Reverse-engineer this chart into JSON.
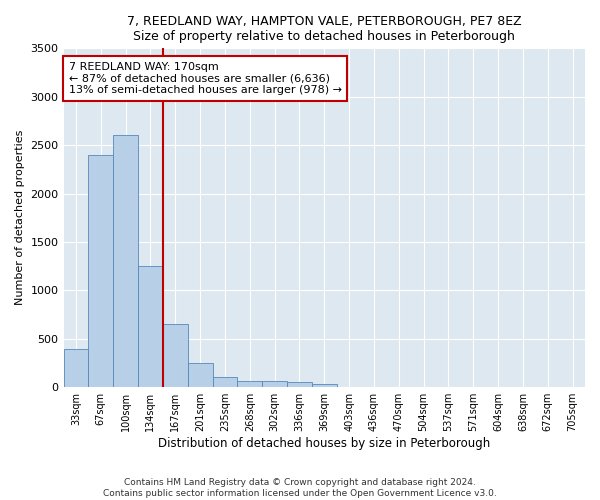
{
  "title1": "7, REEDLAND WAY, HAMPTON VALE, PETERBOROUGH, PE7 8EZ",
  "title2": "Size of property relative to detached houses in Peterborough",
  "xlabel": "Distribution of detached houses by size in Peterborough",
  "ylabel": "Number of detached properties",
  "categories": [
    "33sqm",
    "67sqm",
    "100sqm",
    "134sqm",
    "167sqm",
    "201sqm",
    "235sqm",
    "268sqm",
    "302sqm",
    "336sqm",
    "369sqm",
    "403sqm",
    "436sqm",
    "470sqm",
    "504sqm",
    "537sqm",
    "571sqm",
    "604sqm",
    "638sqm",
    "672sqm",
    "705sqm"
  ],
  "values": [
    390,
    2400,
    2600,
    1250,
    650,
    250,
    110,
    65,
    65,
    50,
    30,
    0,
    0,
    0,
    0,
    0,
    0,
    0,
    0,
    0,
    0
  ],
  "bar_color": "#b8cfe8",
  "bar_edge_color": "#5588bb",
  "vline_color": "#c00000",
  "vline_x": 3.5,
  "annotation_text": "7 REEDLAND WAY: 170sqm\n← 87% of detached houses are smaller (6,636)\n13% of semi-detached houses are larger (978) →",
  "annotation_box_color": "white",
  "annotation_box_edge_color": "#c00000",
  "ylim": [
    0,
    3500
  ],
  "yticks": [
    0,
    500,
    1000,
    1500,
    2000,
    2500,
    3000,
    3500
  ],
  "background_color": "#dde8f0",
  "footer1": "Contains HM Land Registry data © Crown copyright and database right 2024.",
  "footer2": "Contains public sector information licensed under the Open Government Licence v3.0."
}
